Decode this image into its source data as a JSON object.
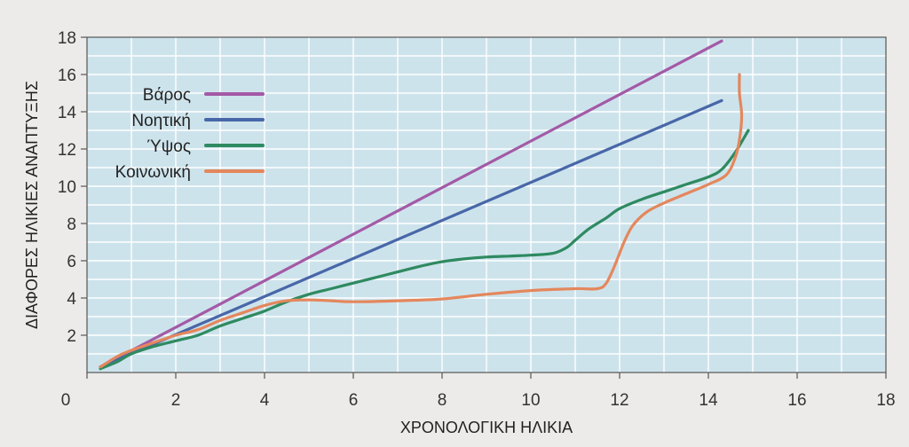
{
  "chart_data": {
    "type": "line",
    "xlabel": "ΧΡΟΝΟΛΟΓΙΚΗ ΗΛΙΚΙΑ",
    "ylabel": "ΔΙΑΦΟΡΕΣ ΗΛΙΚΙΕΣ ΑΝΑΠΤΥΞΗΣ",
    "xlim": [
      0,
      18
    ],
    "ylim": [
      0,
      18
    ],
    "xticks": [
      "0",
      "2",
      "4",
      "6",
      "8",
      "10",
      "12",
      "14",
      "16",
      "18"
    ],
    "yticks": [
      "2",
      "4",
      "6",
      "8",
      "10",
      "12",
      "14",
      "16",
      "18"
    ],
    "grid": true,
    "legend_position": "top-left",
    "plot_background": "#cde3ec",
    "series": [
      {
        "name": "Βάρος",
        "color": "#a35aa6",
        "points": [
          [
            0.3,
            0.3
          ],
          [
            14.3,
            17.8
          ]
        ]
      },
      {
        "name": "Νοητική",
        "color": "#4867a8",
        "points": [
          [
            0.3,
            0.3
          ],
          [
            14.3,
            14.6
          ]
        ]
      },
      {
        "name": "Ύψος",
        "color": "#2e8a60",
        "points": [
          [
            0.3,
            0.2
          ],
          [
            0.7,
            0.6
          ],
          [
            1.0,
            1.0
          ],
          [
            1.5,
            1.4
          ],
          [
            2.0,
            1.7
          ],
          [
            2.5,
            2.0
          ],
          [
            3.0,
            2.5
          ],
          [
            3.5,
            2.9
          ],
          [
            4.0,
            3.3
          ],
          [
            4.5,
            3.8
          ],
          [
            5.0,
            4.2
          ],
          [
            5.5,
            4.5
          ],
          [
            6.0,
            4.8
          ],
          [
            6.5,
            5.1
          ],
          [
            7.0,
            5.4
          ],
          [
            7.5,
            5.7
          ],
          [
            8.0,
            5.95
          ],
          [
            8.5,
            6.1
          ],
          [
            9.0,
            6.2
          ],
          [
            9.5,
            6.25
          ],
          [
            10.0,
            6.3
          ],
          [
            10.5,
            6.4
          ],
          [
            10.8,
            6.7
          ],
          [
            11.0,
            7.1
          ],
          [
            11.3,
            7.7
          ],
          [
            11.7,
            8.3
          ],
          [
            12.0,
            8.8
          ],
          [
            12.5,
            9.3
          ],
          [
            13.0,
            9.7
          ],
          [
            13.5,
            10.1
          ],
          [
            14.0,
            10.5
          ],
          [
            14.3,
            10.9
          ],
          [
            14.6,
            11.8
          ],
          [
            14.9,
            13.0
          ]
        ]
      },
      {
        "name": "Κοινωνική",
        "color": "#e4875c",
        "points": [
          [
            0.3,
            0.3
          ],
          [
            0.8,
            1.0
          ],
          [
            1.5,
            1.6
          ],
          [
            2.0,
            2.0
          ],
          [
            2.5,
            2.3
          ],
          [
            3.0,
            2.8
          ],
          [
            3.5,
            3.2
          ],
          [
            4.0,
            3.6
          ],
          [
            4.5,
            3.85
          ],
          [
            5.0,
            3.9
          ],
          [
            5.5,
            3.85
          ],
          [
            6.0,
            3.8
          ],
          [
            7.0,
            3.85
          ],
          [
            8.0,
            3.95
          ],
          [
            9.0,
            4.2
          ],
          [
            10.0,
            4.4
          ],
          [
            11.0,
            4.5
          ],
          [
            11.5,
            4.5
          ],
          [
            11.7,
            4.8
          ],
          [
            11.9,
            5.8
          ],
          [
            12.1,
            7.0
          ],
          [
            12.3,
            7.9
          ],
          [
            12.6,
            8.6
          ],
          [
            13.0,
            9.1
          ],
          [
            13.5,
            9.6
          ],
          [
            14.0,
            10.1
          ],
          [
            14.4,
            10.6
          ],
          [
            14.6,
            11.5
          ],
          [
            14.7,
            12.5
          ],
          [
            14.75,
            13.8
          ],
          [
            14.7,
            15.0
          ],
          [
            14.7,
            16.0
          ]
        ]
      }
    ]
  }
}
